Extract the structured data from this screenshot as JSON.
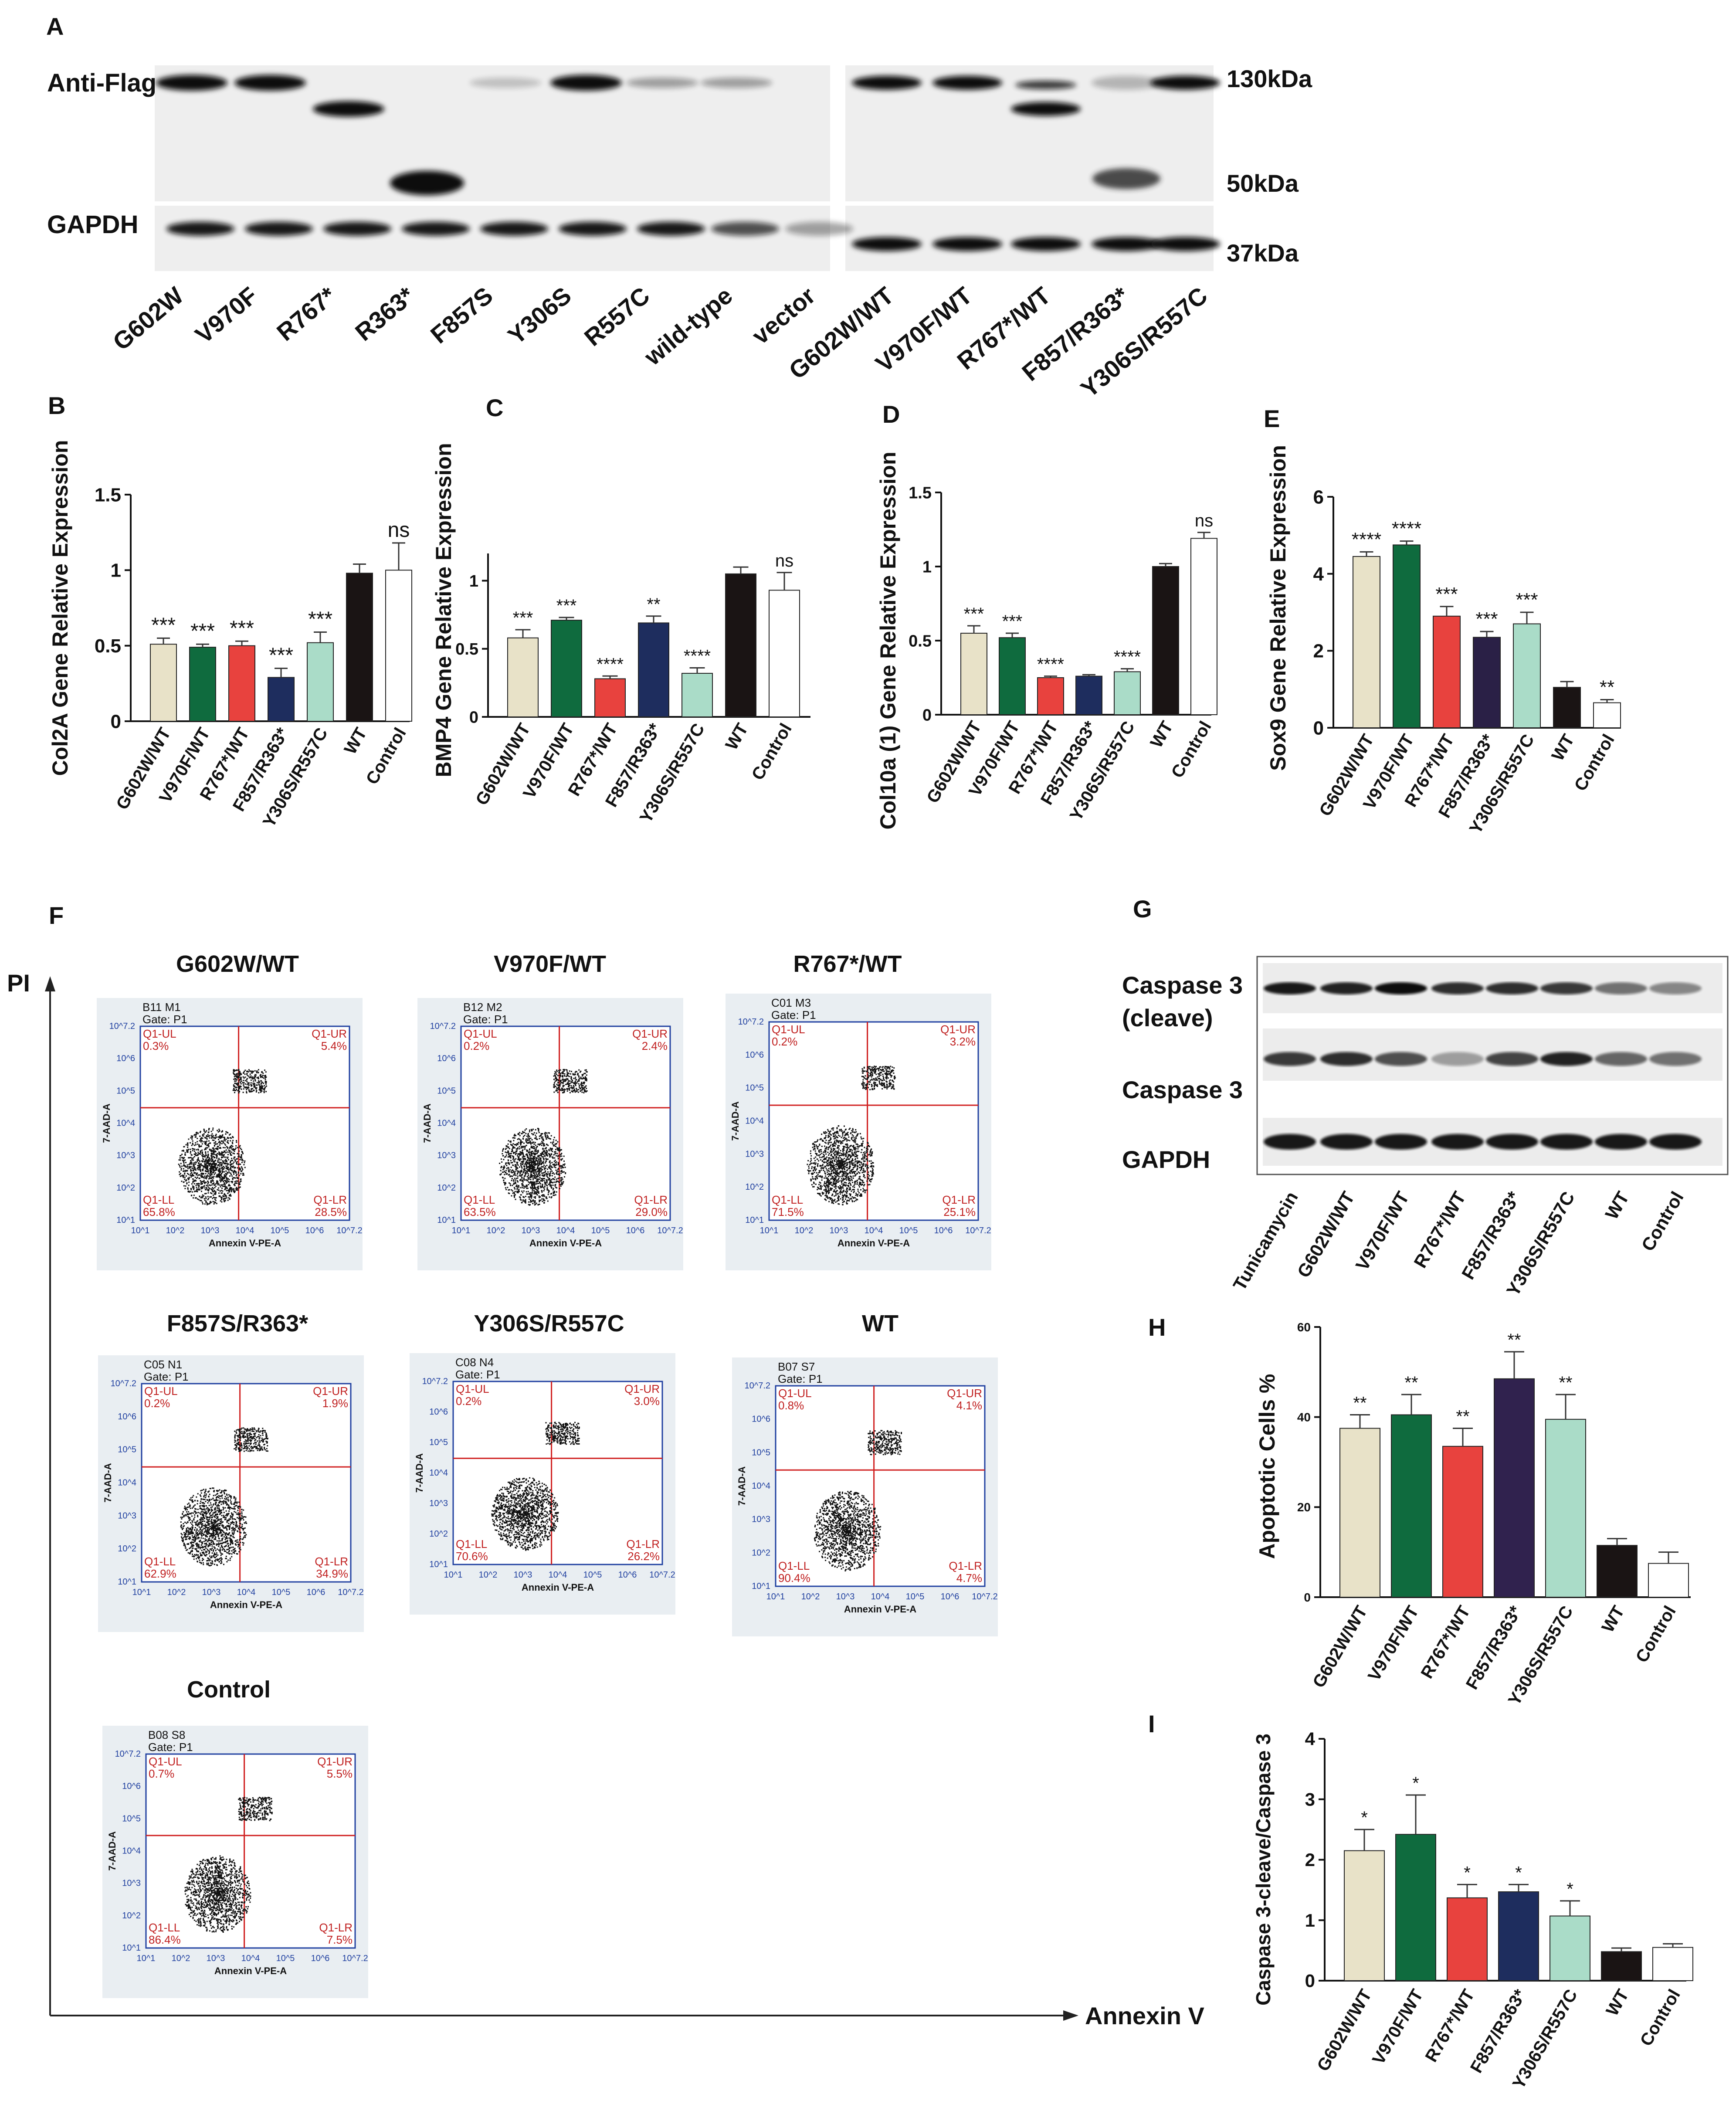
{
  "panels": {
    "A": {
      "letter": "A",
      "anti_flag_label": "Anti-Flag",
      "gapdh_label": "GAPDH",
      "mw_labels": [
        "130kDa",
        "50kDa",
        "37kDa"
      ],
      "lanes": [
        "G602W",
        "V970F",
        "R767*",
        "R363*",
        "F857S",
        "Y306S",
        "R557C",
        "wild-type",
        "vector",
        "G602W/WT",
        "V970F/WT",
        "R767*/WT",
        "F857/R363*",
        "Y306S/R557C"
      ]
    },
    "F": {
      "letter": "F",
      "y_axis": "PI",
      "x_axis": "Annexin V",
      "plots": [
        {
          "title": "G602W/WT",
          "sample": "B11 M1",
          "gate": "Gate: P1",
          "ul": "0.3%",
          "ur": "5.4%",
          "ll": "65.8%",
          "lr": "28.5%"
        },
        {
          "title": "V970F/WT",
          "sample": "B12 M2",
          "gate": "Gate: P1",
          "ul": "0.2%",
          "ur": "2.4%",
          "ll": "63.5%",
          "lr": "29.0%"
        },
        {
          "title": "R767*/WT",
          "sample": "C01 M3",
          "gate": "Gate: P1",
          "ul": "0.2%",
          "ur": "3.2%",
          "ll": "71.5%",
          "lr": "25.1%"
        },
        {
          "title": "F857S/R363*",
          "sample": "C05 N1",
          "gate": "Gate: P1",
          "ul": "0.2%",
          "ur": "1.9%",
          "ll": "62.9%",
          "lr": "34.9%"
        },
        {
          "title": "Y306S/R557C",
          "sample": "C08 N4",
          "gate": "Gate: P1",
          "ul": "0.2%",
          "ur": "3.0%",
          "ll": "70.6%",
          "lr": "26.2%"
        },
        {
          "title": "WT",
          "sample": "B07 S7",
          "gate": "Gate: P1",
          "ul": "0.8%",
          "ur": "4.1%",
          "ll": "90.4%",
          "lr": "4.7%"
        },
        {
          "title": "Control",
          "sample": "B08 S8",
          "gate": "Gate: P1",
          "ul": "0.7%",
          "ur": "5.5%",
          "ll": "86.4%",
          "lr": "7.5%"
        }
      ],
      "quadrant_names": {
        "ul": "Q1-UL",
        "ur": "Q1-UR",
        "ll": "Q1-LL",
        "lr": "Q1-LR"
      },
      "plot_xlabel": "Annexin V-PE-A",
      "plot_ylabel": "7-AAD-A",
      "tick_labels": [
        "10^1",
        "10^2",
        "10^3",
        "10^4",
        "10^5",
        "10^6",
        "10^7.2"
      ]
    },
    "G": {
      "letter": "G",
      "row_labels": [
        "Caspase 3",
        "(cleave)",
        "Caspase 3",
        "GAPDH"
      ],
      "lanes": [
        "Tunicamycin",
        "G602W/WT",
        "V970F/WT",
        "R767*/WT",
        "F857/R363*",
        "Y306S/R557C",
        "WT",
        "Control"
      ]
    }
  },
  "chart_data": [
    {
      "id": "B",
      "type": "bar",
      "letter": "B",
      "ylabel": "Col2A Gene Relative Expression",
      "categories": [
        "G602W/WT",
        "V970F/WT",
        "R767*/WT",
        "F857/R363*",
        "Y306S/R557C",
        "WT",
        "Control"
      ],
      "values": [
        0.51,
        0.49,
        0.5,
        0.29,
        0.52,
        0.98,
        1.0
      ],
      "errors": [
        0.04,
        0.02,
        0.03,
        0.06,
        0.07,
        0.06,
        0.18
      ],
      "sig": [
        "***",
        "***",
        "***",
        "***",
        "***",
        "",
        "ns"
      ],
      "ylim": [
        0,
        1.5
      ],
      "ticks": [
        0.0,
        0.5,
        1.0,
        1.5
      ],
      "colors": [
        "#e8e2c8",
        "#0f6b3e",
        "#e8423e",
        "#1e2d5e",
        "#aadcc8",
        "#1a1414",
        "#ffffff"
      ]
    },
    {
      "id": "C",
      "type": "bar",
      "letter": "C",
      "ylabel": "BMP4 Gene Relative Expression",
      "categories": [
        "G602W/WT",
        "V970F/WT",
        "R767*/WT",
        "F857/R363*",
        "Y306S/R557C",
        "WT",
        "Control"
      ],
      "values": [
        0.58,
        0.71,
        0.28,
        0.69,
        0.32,
        1.05,
        0.93
      ],
      "errors": [
        0.06,
        0.02,
        0.02,
        0.05,
        0.04,
        0.05,
        0.13
      ],
      "sig": [
        "***",
        "***",
        "****",
        "**",
        "****",
        "",
        "ns"
      ],
      "ylim": [
        0,
        1.2
      ],
      "ticks": [
        0.0,
        0.5,
        1.0
      ],
      "colors": [
        "#e8e2c8",
        "#0f6b3e",
        "#e8423e",
        "#1e2d5e",
        "#aadcc8",
        "#1a1414",
        "#ffffff"
      ]
    },
    {
      "id": "D",
      "type": "bar",
      "letter": "D",
      "ylabel": "Col10a (1) Gene Relative Expression",
      "categories": [
        "G602W/WT",
        "V970F/WT",
        "R767*/WT",
        "F857/R363*",
        "Y306S/R557C",
        "WT",
        "Control"
      ],
      "values": [
        0.55,
        0.52,
        0.25,
        0.26,
        0.29,
        1.0,
        1.19
      ],
      "errors": [
        0.05,
        0.03,
        0.01,
        0.01,
        0.02,
        0.02,
        0.04
      ],
      "sig": [
        "***",
        "***",
        "****",
        "",
        "****",
        "",
        "ns"
      ],
      "ylim": [
        0,
        1.5
      ],
      "ticks": [
        0.0,
        0.5,
        1.0,
        1.5
      ],
      "colors": [
        "#e8e2c8",
        "#0f6b3e",
        "#e8423e",
        "#1e2d5e",
        "#aadcc8",
        "#1a1414",
        "#ffffff"
      ]
    },
    {
      "id": "E",
      "type": "bar",
      "letter": "E",
      "ylabel": "Sox9 Gene Relative Expression",
      "categories": [
        "G602W/WT",
        "V970F/WT",
        "R767*/WT",
        "F857/R363*",
        "Y306S/R557C",
        "WT",
        "Control"
      ],
      "values": [
        4.45,
        4.75,
        2.9,
        2.35,
        2.7,
        1.05,
        0.65
      ],
      "errors": [
        0.12,
        0.1,
        0.25,
        0.15,
        0.3,
        0.15,
        0.08
      ],
      "sig": [
        "****",
        "****",
        "***",
        "***",
        "***",
        "",
        "**"
      ],
      "ylim": [
        0,
        6
      ],
      "ticks": [
        0,
        2,
        4,
        6
      ],
      "colors": [
        "#e8e2c8",
        "#0f6b3e",
        "#e8423e",
        "#2a2046",
        "#aadcc8",
        "#1a1414",
        "#ffffff"
      ]
    },
    {
      "id": "H",
      "type": "bar",
      "letter": "H",
      "ylabel": "Apoptotic Cells %",
      "categories": [
        "G602W/WT",
        "V970F/WT",
        "R767*/WT",
        "F857/R363*",
        "Y306S/R557C",
        "WT",
        "Control"
      ],
      "values": [
        37.5,
        40.5,
        33.5,
        48.5,
        39.5,
        11.5,
        7.5
      ],
      "errors": [
        3,
        4.5,
        4,
        6,
        5.5,
        1.5,
        2.5
      ],
      "sig": [
        "**",
        "**",
        "**",
        "**",
        "**",
        "",
        ""
      ],
      "ylim": [
        0,
        60
      ],
      "ticks": [
        0,
        20,
        40,
        60
      ],
      "colors": [
        "#e8e2c8",
        "#0f6b3e",
        "#e8423e",
        "#30224e",
        "#aadcc8",
        "#1a1414",
        "#ffffff"
      ]
    },
    {
      "id": "I",
      "type": "bar",
      "letter": "I",
      "ylabel": "Caspase 3-cleave/Caspase 3",
      "categories": [
        "G602W/WT",
        "V970F/WT",
        "R767*/WT",
        "F857/R363*",
        "Y306S/R557C",
        "WT",
        "Control"
      ],
      "values": [
        2.15,
        2.42,
        1.37,
        1.47,
        1.07,
        0.48,
        0.55
      ],
      "errors": [
        0.35,
        0.65,
        0.22,
        0.12,
        0.25,
        0.06,
        0.06
      ],
      "sig": [
        "*",
        "*",
        "*",
        "*",
        "*",
        "",
        ""
      ],
      "ylim": [
        0,
        4
      ],
      "ticks": [
        0,
        1,
        2,
        3,
        4
      ],
      "colors": [
        "#e8e2c8",
        "#0f6b3e",
        "#e8423e",
        "#1e2d5e",
        "#aadcc8",
        "#1a1414",
        "#ffffff"
      ]
    }
  ]
}
